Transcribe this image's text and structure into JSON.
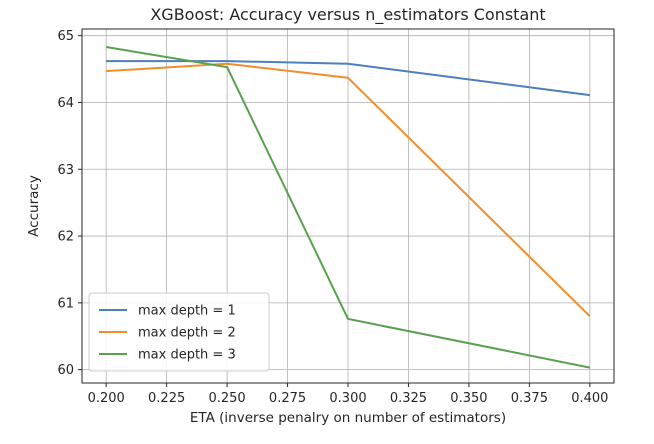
{
  "chart_data": {
    "type": "line",
    "title": "XGBoost: Accuracy versus n_estimators Constant",
    "xlabel": "ETA (inverse penalry on number of estimators)",
    "ylabel": "Accuracy",
    "xlim": [
      0.19,
      0.41
    ],
    "ylim": [
      59.8,
      65.1
    ],
    "xticks": [
      0.2,
      0.225,
      0.25,
      0.275,
      0.3,
      0.325,
      0.35,
      0.375,
      0.4
    ],
    "xtick_labels": [
      "0.200",
      "0.225",
      "0.250",
      "0.275",
      "0.300",
      "0.325",
      "0.350",
      "0.375",
      "0.400"
    ],
    "yticks": [
      60,
      61,
      62,
      63,
      64,
      65
    ],
    "ytick_labels": [
      "60",
      "61",
      "62",
      "63",
      "64",
      "65"
    ],
    "grid": true,
    "legend_position": "lower-left",
    "x": [
      0.2,
      0.25,
      0.3,
      0.4
    ],
    "series": [
      {
        "name": "max depth = 1",
        "color": "#4c7fbd",
        "values": [
          64.62,
          64.62,
          64.58,
          64.11
        ]
      },
      {
        "name": "max depth = 2",
        "color": "#f28e2b",
        "values": [
          64.47,
          64.58,
          64.37,
          60.8
        ]
      },
      {
        "name": "max depth = 3",
        "color": "#59a14f",
        "values": [
          64.83,
          64.53,
          60.76,
          60.03
        ]
      }
    ]
  }
}
